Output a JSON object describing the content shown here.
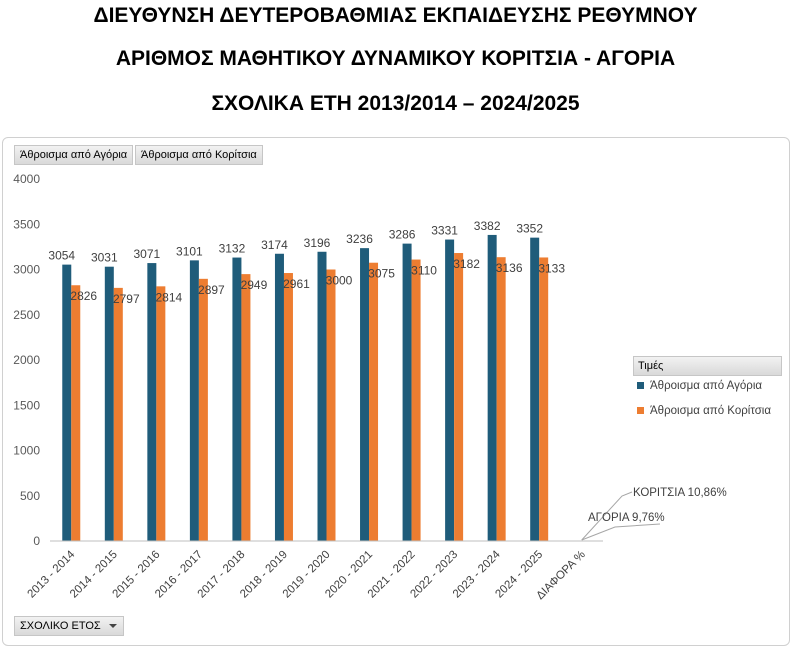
{
  "header": {
    "line1": "ΔΙΕΥΘΥΝΣΗ ΔΕΥΤΕΡΟΒΑΘΜΙΑΣ ΕΚΠΑΙΔΕΥΣΗΣ ΡΕΘΥΜΝΟΥ",
    "line2": "ΑΡΙΘΜΟΣ ΜΑΘΗΤΙΚΟΥ ΔΥΝΑΜΙΚΟΥ ΚΟΡΙΤΣΙΑ - ΑΓΟΡΙΑ",
    "line3": "ΣΧΟΛΙΚΑ ΕΤΗ 2013/2014 – 2024/2025"
  },
  "field_buttons": {
    "boys": "Άθροισμα από Αγόρια",
    "girls": "Άθροισμα από Κορίτσια",
    "axis": "ΣΧΟΛΙΚΟ ΕΤΟΣ"
  },
  "legend": {
    "header": "Τιμές",
    "position": "right",
    "items": [
      "Άθροισμα από Αγόρια",
      "Άθροισμα από Κορίτσια"
    ]
  },
  "colors": {
    "boys": "#1f5c7a",
    "girls": "#ed7d31"
  },
  "chart_data": {
    "type": "bar",
    "categories": [
      "2013 - 2014",
      "2014 - 2015",
      "2015 - 2016",
      "2016 - 2017",
      "2017 - 2018",
      "2018 - 2019",
      "2019 - 2020",
      "2020 - 2021",
      "2021 - 2022",
      "2022 - 2023",
      "2023 - 2024",
      "2024 - 2025",
      "ΔΙΑΦΟΡΑ %"
    ],
    "series": [
      {
        "name": "Άθροισμα από Αγόρια",
        "values": [
          3054,
          3031,
          3071,
          3101,
          3132,
          3174,
          3196,
          3236,
          3286,
          3331,
          3382,
          3352,
          null
        ]
      },
      {
        "name": "Άθροισμα από Κορίτσια",
        "values": [
          2826,
          2797,
          2814,
          2897,
          2949,
          2961,
          3000,
          3075,
          3110,
          3182,
          3136,
          3133,
          null
        ]
      }
    ],
    "ylim": [
      0,
      4000
    ],
    "yticks": [
      0,
      500,
      1000,
      1500,
      2000,
      2500,
      3000,
      3500,
      4000
    ],
    "grid": false,
    "annotations": [
      "ΚΟΡΙΤΣΙΑ 10,86%",
      "ΑΓΟΡΙΑ 9,76%"
    ]
  }
}
